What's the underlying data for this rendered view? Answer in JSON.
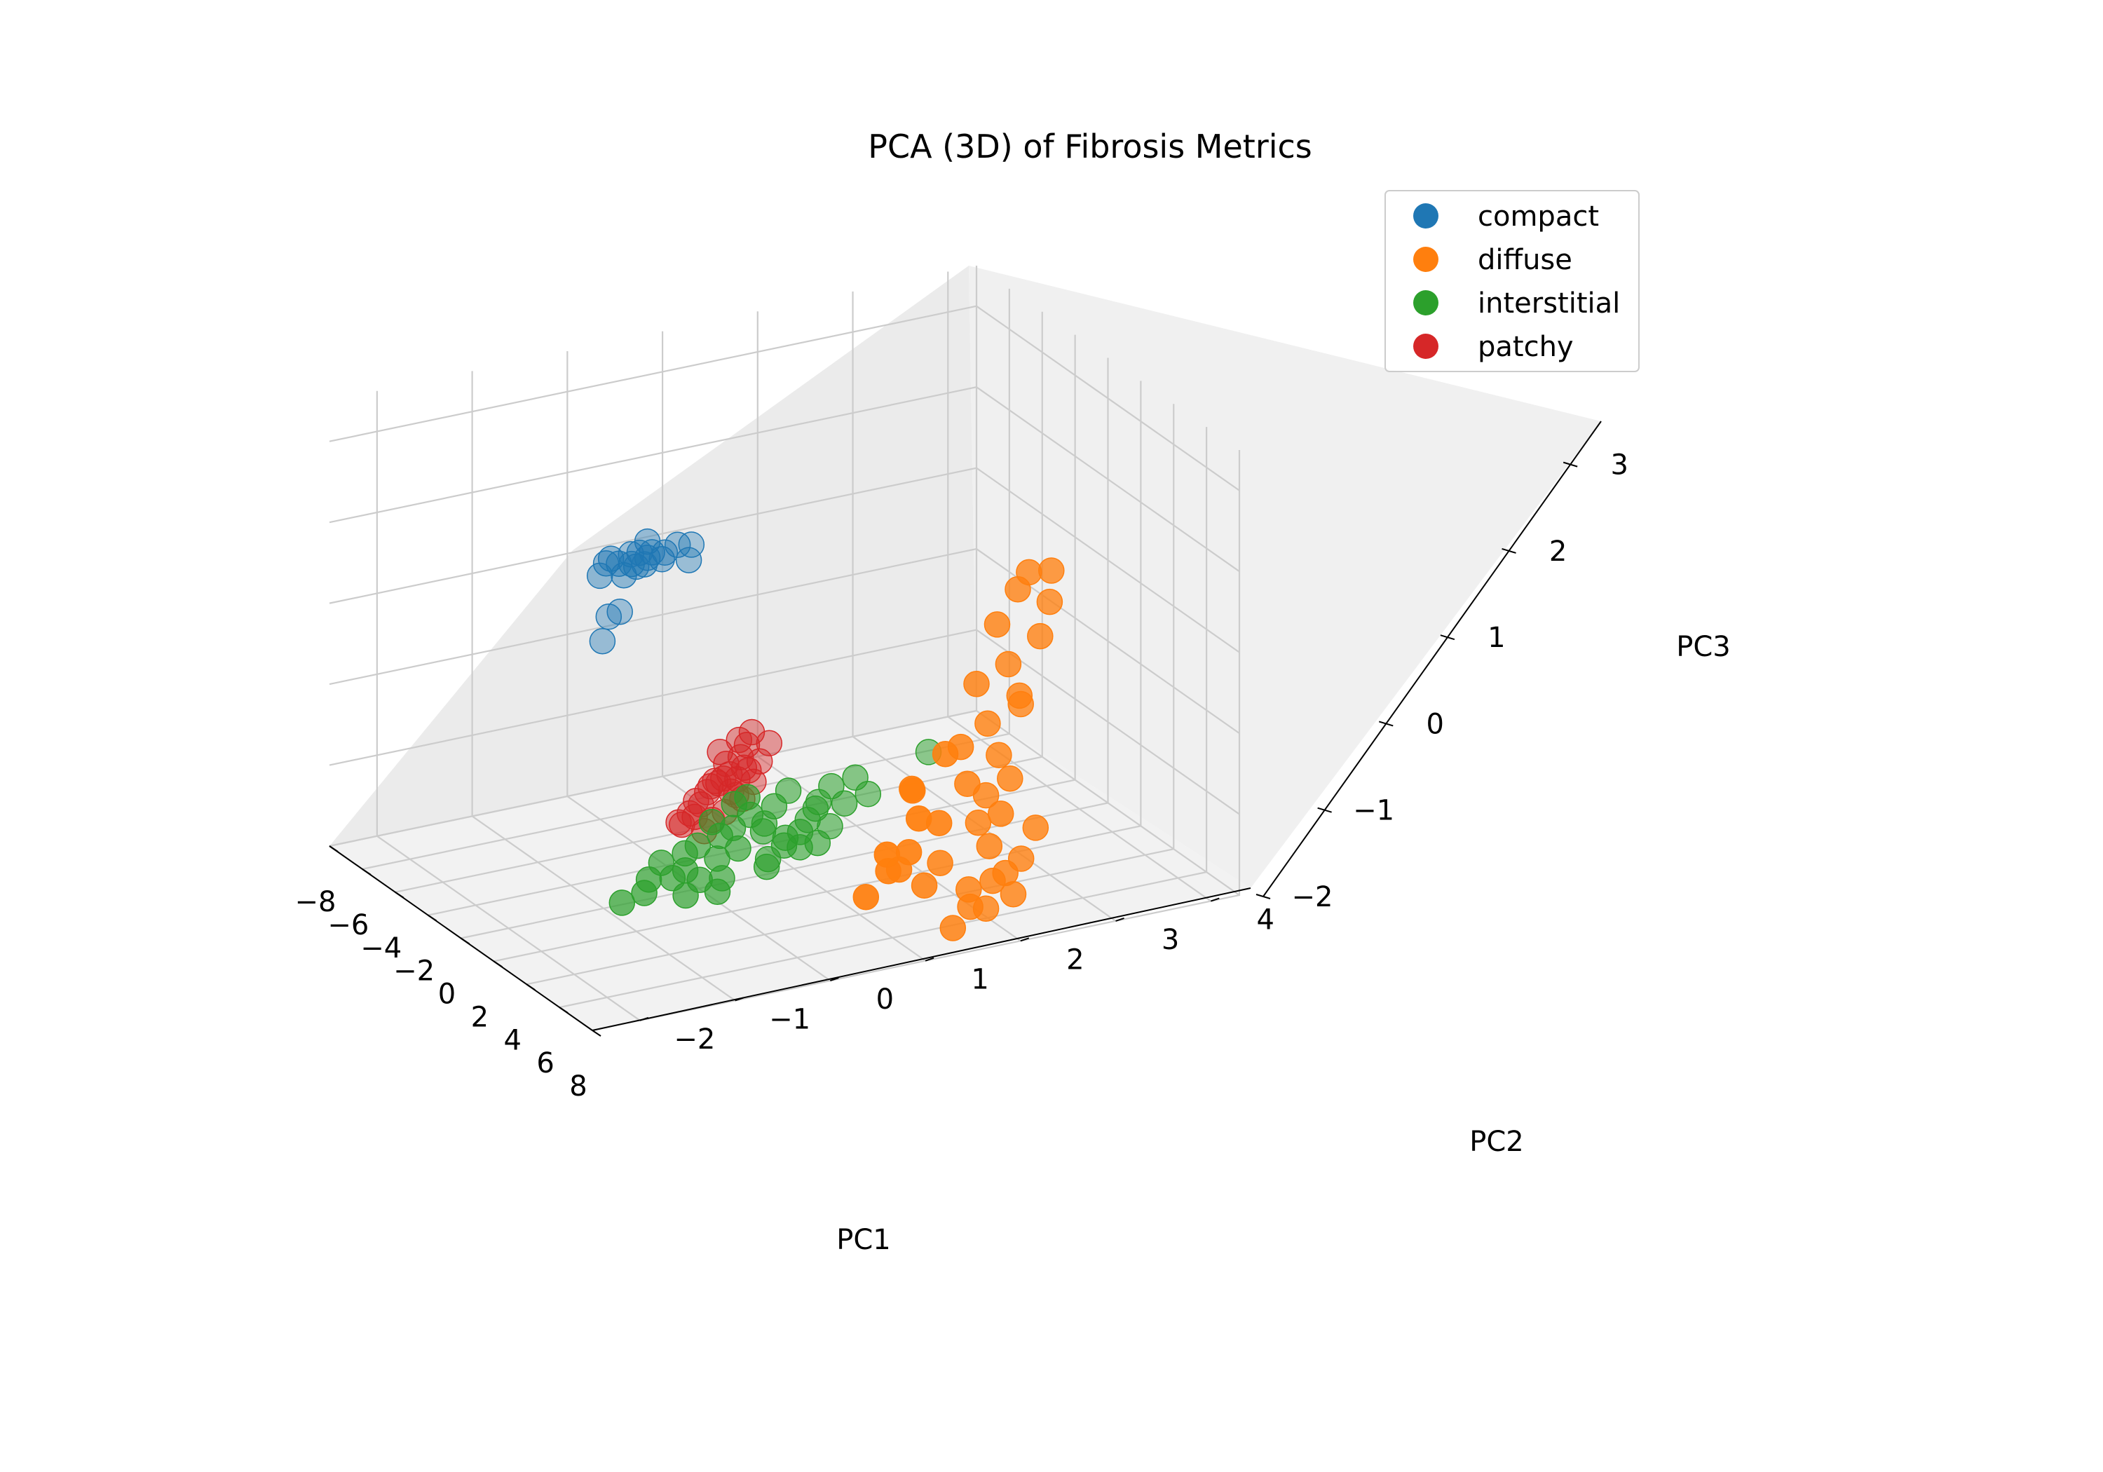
{
  "chart_data": {
    "type": "scatter",
    "projection": "3d",
    "title": "PCA (3D) of Fibrosis Metrics",
    "xlabel": "PC1",
    "ylabel": "PC2",
    "zlabel": "PC3",
    "xlim": [
      -8,
      8
    ],
    "ylim": [
      -2.5,
      4.3
    ],
    "zlim": [
      -2,
      3.5
    ],
    "xticks": [
      -8,
      -6,
      -4,
      -2,
      0,
      2,
      4,
      6,
      8
    ],
    "yticks": [
      -2,
      -1,
      0,
      1,
      2,
      3,
      4
    ],
    "zticks": [
      -2,
      -1,
      0,
      1,
      2,
      3
    ],
    "grid": true,
    "legend": "top-right",
    "series": [
      {
        "name": "compact",
        "color": "#1f77b4",
        "points": [
          [
            -6.6,
            0.6,
            1.0
          ],
          [
            -6.6,
            0.3,
            1.0
          ],
          [
            -6.4,
            0.4,
            1.0
          ],
          [
            -6.7,
            0.8,
            1.0
          ],
          [
            -6.5,
            0.5,
            1.1
          ],
          [
            -6.6,
            0.1,
            0.9
          ],
          [
            -6.3,
            0.7,
            1.0
          ],
          [
            -6.5,
            0.9,
            1.1
          ],
          [
            -6.8,
            0.2,
            1.0
          ],
          [
            -6.6,
            0.6,
            1.2
          ],
          [
            -6.4,
            1.0,
            0.9
          ],
          [
            -6.2,
            0.5,
            1.0
          ],
          [
            -6.7,
            0.5,
            0.9
          ],
          [
            -6.5,
            0.2,
            1.1
          ],
          [
            -6.9,
            0.7,
            1.0
          ],
          [
            -6.3,
            0.3,
            0.9
          ],
          [
            -7.4,
            1.2,
            0.9
          ],
          [
            -7.6,
            0.6,
            0.9
          ],
          [
            -7.7,
            0.5,
            0.2
          ],
          [
            -7.8,
            0.4,
            0.15
          ],
          [
            -7.6,
            0.3,
            -0.1
          ]
        ]
      },
      {
        "name": "diffuse",
        "color": "#ff7f0e",
        "points": [
          [
            6.2,
            2.4,
            2.2
          ],
          [
            6.4,
            2.6,
            2.2
          ],
          [
            6.1,
            2.3,
            2.0
          ],
          [
            6.0,
            2.1,
            1.6
          ],
          [
            6.3,
            2.5,
            1.4
          ],
          [
            6.1,
            2.2,
            1.1
          ],
          [
            5.9,
            1.9,
            0.9
          ],
          [
            6.2,
            2.3,
            0.7
          ],
          [
            5.7,
            2.4,
            0.5
          ],
          [
            6.0,
            2.0,
            0.4
          ],
          [
            6.1,
            2.1,
            0.0
          ],
          [
            6.2,
            2.2,
            -0.3
          ],
          [
            5.9,
            2.0,
            -0.5
          ],
          [
            6.0,
            1.9,
            -0.8
          ],
          [
            6.1,
            2.0,
            -1.1
          ],
          [
            6.3,
            2.3,
            -1.3
          ],
          [
            6.0,
            1.8,
            -1.6
          ],
          [
            5.9,
            2.0,
            -1.9
          ],
          [
            6.2,
            1.6,
            -2.0
          ],
          [
            6.1,
            1.8,
            -1.8
          ],
          [
            6.4,
            2.2,
            -1.7
          ],
          [
            6.3,
            2.0,
            -1.5
          ],
          [
            6.5,
            2.1,
            -1.4
          ],
          [
            6.6,
            2.4,
            -0.9
          ],
          [
            6.8,
            2.0,
            -0.6
          ],
          [
            6.5,
            1.7,
            -0.2
          ],
          [
            7.1,
            1.3,
            -0.5
          ],
          [
            7.0,
            1.0,
            -0.8
          ],
          [
            6.9,
            0.8,
            -1.0
          ],
          [
            6.7,
            0.6,
            -1.3
          ],
          [
            7.4,
            0.7,
            -0.7
          ],
          [
            7.6,
            1.0,
            -0.3
          ],
          [
            7.8,
            0.9,
            0.1
          ],
          [
            6.9,
            1.4,
            0.3
          ],
          [
            6.6,
            1.1,
            -0.1
          ],
          [
            6.4,
            1.0,
            -1.1
          ],
          [
            6.2,
            1.3,
            -1.4
          ],
          [
            6.0,
            1.5,
            -1.2
          ],
          [
            6.3,
            2.6,
            1.8
          ],
          [
            6.1,
            1.7,
            0.2
          ]
        ]
      },
      {
        "name": "interstitial",
        "color": "#2ca02c",
        "points": [
          [
            -0.5,
            2.5,
            -1.0
          ],
          [
            -1.0,
            1.4,
            -1.5
          ],
          [
            -1.2,
            1.0,
            -1.4
          ],
          [
            -0.9,
            1.3,
            -1.6
          ],
          [
            -1.3,
            0.9,
            -1.7
          ],
          [
            -1.1,
            1.1,
            -1.8
          ],
          [
            -0.8,
            1.2,
            -1.9
          ],
          [
            -1.4,
            0.6,
            -1.6
          ],
          [
            -1.6,
            0.5,
            -1.7
          ],
          [
            -1.5,
            0.8,
            -1.5
          ],
          [
            -1.0,
            0.9,
            -2.0
          ],
          [
            -0.7,
            1.5,
            -1.7
          ],
          [
            -0.6,
            1.0,
            -1.8
          ],
          [
            -1.2,
            0.4,
            -1.9
          ],
          [
            -1.8,
            0.3,
            -1.8
          ],
          [
            -2.0,
            0.2,
            -1.9
          ],
          [
            -1.7,
            -0.1,
            -1.9
          ],
          [
            -1.4,
            0.1,
            -2.0
          ],
          [
            -1.1,
            0.2,
            -2.1
          ],
          [
            -0.9,
            0.4,
            -2.1
          ],
          [
            -0.5,
            0.8,
            -2.0
          ],
          [
            -0.3,
            1.3,
            -1.8
          ],
          [
            -0.2,
            1.1,
            -1.6
          ],
          [
            -0.4,
            1.6,
            -1.4
          ],
          [
            -1.2,
            1.6,
            -1.3
          ],
          [
            -1.5,
            1.2,
            -1.3
          ],
          [
            -1.9,
            0.7,
            -1.4
          ],
          [
            -2.1,
            0.5,
            -1.6
          ],
          [
            -1.3,
            -0.3,
            -2.0
          ],
          [
            -1.0,
            -0.4,
            -2.1
          ],
          [
            -0.8,
            0.0,
            -2.2
          ],
          [
            -0.6,
            0.3,
            -2.2
          ],
          [
            -1.6,
            0.0,
            -2.1
          ],
          [
            -1.2,
            -0.6,
            -2.2
          ],
          [
            -0.9,
            1.8,
            -1.2
          ],
          [
            -0.7,
            1.9,
            -1.4
          ],
          [
            -1.4,
            1.5,
            -1.5
          ],
          [
            -1.1,
            0.7,
            -1.2
          ],
          [
            -0.5,
            0.5,
            -1.7
          ],
          [
            -1.8,
            1.0,
            -1.7
          ]
        ]
      },
      {
        "name": "patchy",
        "color": "#d62728",
        "points": [
          [
            -4.5,
            1.2,
            -1.1
          ],
          [
            -4.3,
            1.3,
            -1.0
          ],
          [
            -4.4,
            1.2,
            -1.3
          ],
          [
            -4.5,
            1.1,
            -1.5
          ],
          [
            -4.6,
            1.0,
            -1.6
          ],
          [
            -4.4,
            1.1,
            -1.7
          ],
          [
            -4.3,
            1.2,
            -1.8
          ],
          [
            -4.7,
            0.9,
            -1.7
          ],
          [
            -4.5,
            0.8,
            -1.8
          ],
          [
            -4.2,
            1.0,
            -1.9
          ],
          [
            -4.6,
            0.7,
            -1.9
          ],
          [
            -4.8,
            0.8,
            -1.8
          ],
          [
            -4.4,
            0.9,
            -2.0
          ],
          [
            -4.3,
            0.8,
            -2.1
          ],
          [
            -4.6,
            1.2,
            -1.6
          ],
          [
            -4.5,
            1.3,
            -1.5
          ],
          [
            -4.4,
            1.4,
            -1.4
          ],
          [
            -4.2,
            1.3,
            -1.6
          ],
          [
            -4.7,
            1.1,
            -1.4
          ],
          [
            -4.5,
            0.6,
            -2.0
          ],
          [
            -4.1,
            1.1,
            -1.7
          ],
          [
            -4.8,
            1.0,
            -1.6
          ],
          [
            -4.3,
            0.7,
            -1.9
          ],
          [
            -4.6,
            1.3,
            -1.2
          ],
          [
            -4.4,
            1.5,
            -1.2
          ],
          [
            -4.2,
            1.2,
            -1.4
          ],
          [
            -4.5,
            1.0,
            -1.2
          ],
          [
            -4.7,
            0.6,
            -2.0
          ],
          [
            -4.3,
            1.0,
            -1.5
          ],
          [
            -4.5,
            0.9,
            -1.6
          ]
        ]
      }
    ]
  }
}
